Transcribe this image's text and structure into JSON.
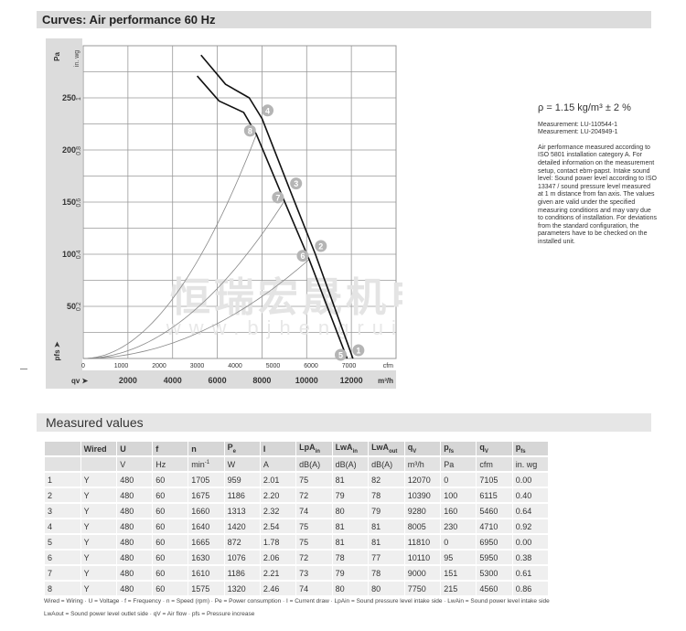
{
  "header": {
    "title": "Curves: Air performance 60 Hz"
  },
  "side": {
    "density": "ρ = 1.15 kg/m³ ± 2 %",
    "measurement1": "Measurement: LU-110544-1",
    "measurement2": "Measurement: LU-204949-1",
    "note": "Air performance measured according to ISO 5801 installation category A. For detailed information on the measurement setup, contact ebm-papst. Intake sound level: Sound power level according to ISO 13347 / sound pressure level measured at 1 m distance from fan axis. The values given are valid under the specified measuring conditions and may vary due to conditions of installation. For deviations from the standard configuration, the parameters have to be checked on the installed unit."
  },
  "watermark": {
    "cn": "恒瑞宏晟机电",
    "url": "www.bjhengrui.cn"
  },
  "chart_data": {
    "type": "line",
    "title": "Curves: Air performance 60 Hz",
    "xlabel": "qv",
    "xunit": "m³/h",
    "xunit2": "cfm",
    "ylabel": "pfs",
    "yunit": "Pa",
    "yunit2": "in. wg",
    "xlim": [
      0,
      14000
    ],
    "ylim": [
      0,
      300
    ],
    "grid": true,
    "x_ticks": [
      2000,
      4000,
      6000,
      8000,
      10000,
      12000
    ],
    "y_ticks": [
      50,
      100,
      150,
      200,
      250
    ],
    "cfm_ticks": [
      0,
      1000,
      2000,
      3000,
      4000,
      5000,
      6000,
      7000
    ],
    "inwg_ticks": [
      0.2,
      0.4,
      0.6,
      0.8,
      1
    ],
    "fan_curves": [
      {
        "points": [
          [
            5270,
            291
          ],
          [
            6370,
            263
          ],
          [
            7430,
            250
          ],
          [
            8005,
            230
          ],
          [
            9280,
            160
          ],
          [
            10390,
            100
          ],
          [
            12070,
            0
          ]
        ],
        "markers": [
          4,
          3,
          2,
          1
        ]
      },
      {
        "points": [
          [
            5100,
            271
          ],
          [
            6080,
            247
          ],
          [
            7180,
            236
          ],
          [
            7750,
            215
          ],
          [
            9000,
            151
          ],
          [
            10110,
            95
          ],
          [
            11810,
            0
          ]
        ],
        "markers": [
          8,
          7,
          6,
          5
        ]
      }
    ],
    "system_curves": [
      {
        "through": [
          7750,
          215
        ]
      },
      {
        "through": [
          9000,
          151
        ]
      },
      {
        "through": [
          10110,
          95
        ]
      }
    ],
    "operating_points": [
      {
        "label": "1",
        "x": 12070,
        "y": 0
      },
      {
        "label": "2",
        "x": 10390,
        "y": 100
      },
      {
        "label": "3",
        "x": 9280,
        "y": 160
      },
      {
        "label": "4",
        "x": 8005,
        "y": 230
      },
      {
        "label": "5",
        "x": 11810,
        "y": 0
      },
      {
        "label": "6",
        "x": 10110,
        "y": 95
      },
      {
        "label": "7",
        "x": 9000,
        "y": 151
      },
      {
        "label": "8",
        "x": 7750,
        "y": 215
      }
    ]
  },
  "table": {
    "title": "Measured values",
    "headers": [
      "",
      "Wired",
      "U",
      "f",
      "n",
      "Pe",
      "I",
      "LpAin",
      "LwAin",
      "LwAout",
      "qV",
      "pfs",
      "qV",
      "pfs"
    ],
    "units": [
      "",
      "",
      "V",
      "Hz",
      "min-1",
      "W",
      "A",
      "dB(A)",
      "dB(A)",
      "dB(A)",
      "m³/h",
      "Pa",
      "cfm",
      "in. wg"
    ],
    "rows": [
      [
        "1",
        "Y",
        "480",
        "60",
        "1705",
        "959",
        "2.01",
        "75",
        "81",
        "82",
        "12070",
        "0",
        "7105",
        "0.00"
      ],
      [
        "2",
        "Y",
        "480",
        "60",
        "1675",
        "1186",
        "2.20",
        "72",
        "79",
        "78",
        "10390",
        "100",
        "6115",
        "0.40"
      ],
      [
        "3",
        "Y",
        "480",
        "60",
        "1660",
        "1313",
        "2.32",
        "74",
        "80",
        "79",
        "9280",
        "160",
        "5460",
        "0.64"
      ],
      [
        "4",
        "Y",
        "480",
        "60",
        "1640",
        "1420",
        "2.54",
        "75",
        "81",
        "81",
        "8005",
        "230",
        "4710",
        "0.92"
      ],
      [
        "5",
        "Y",
        "480",
        "60",
        "1665",
        "872",
        "1.78",
        "75",
        "81",
        "81",
        "11810",
        "0",
        "6950",
        "0.00"
      ],
      [
        "6",
        "Y",
        "480",
        "60",
        "1630",
        "1076",
        "2.06",
        "72",
        "78",
        "77",
        "10110",
        "95",
        "5950",
        "0.38"
      ],
      [
        "7",
        "Y",
        "480",
        "60",
        "1610",
        "1186",
        "2.21",
        "73",
        "79",
        "78",
        "9000",
        "151",
        "5300",
        "0.61"
      ],
      [
        "8",
        "Y",
        "480",
        "60",
        "1575",
        "1320",
        "2.46",
        "74",
        "80",
        "80",
        "7750",
        "215",
        "4560",
        "0.86"
      ]
    ],
    "footnote1": "Wired = Wiring · U = Voltage · f = Frequency · n = Speed (rpm) · Pe = Power consumption · I = Current draw · LpAin = Sound pressure level intake side · LwAin = Sound power level intake side",
    "footnote2": "LwAout = Sound power level outlet side · qV = Air flow · pfs = Pressure increase"
  }
}
